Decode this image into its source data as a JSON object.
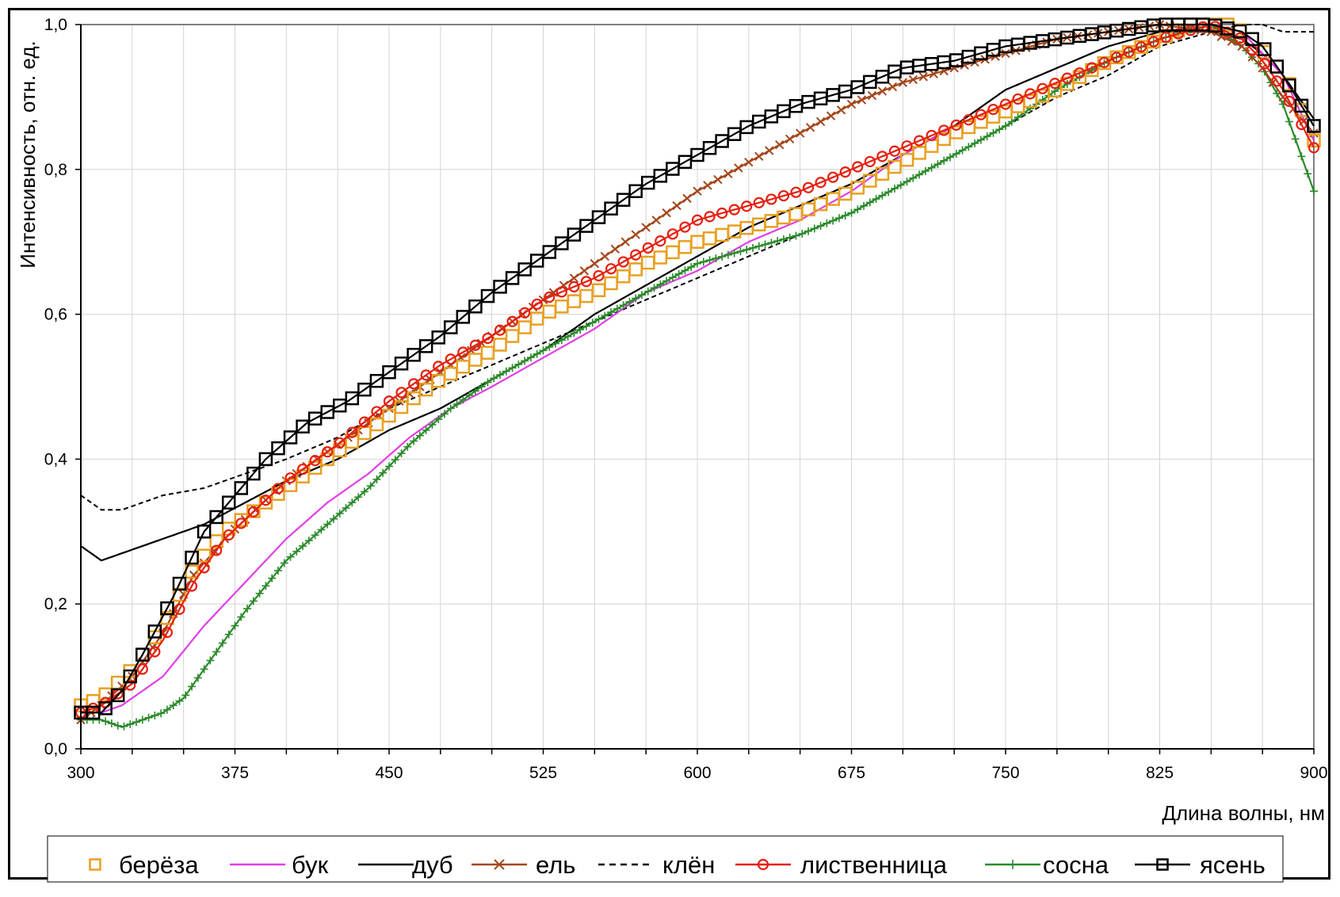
{
  "chart_data": {
    "type": "line",
    "xlabel": "Длина волны, нм",
    "ylabel": "Интенсивность, отн. ед.",
    "xlim": [
      300,
      900
    ],
    "ylim": [
      0,
      1.0
    ],
    "x_ticks": [
      "300",
      "375",
      "450",
      "525",
      "600",
      "675",
      "750",
      "825",
      "900"
    ],
    "y_ticks": [
      "0,0",
      "0,2",
      "0,4",
      "0,6",
      "0,8",
      "1,0"
    ],
    "grid": true,
    "legend_position": "bottom",
    "series": [
      {
        "name": "берёза",
        "color": "#e8a020",
        "marker": "square",
        "line": "none",
        "x": [
          300,
          310,
          325,
          340,
          355,
          370,
          385,
          400,
          425,
          450,
          475,
          500,
          525,
          550,
          575,
          600,
          625,
          650,
          675,
          700,
          725,
          750,
          775,
          800,
          825,
          840,
          850,
          860,
          870,
          880,
          890,
          900
        ],
        "y": [
          0.06,
          0.07,
          0.11,
          0.17,
          0.25,
          0.3,
          0.33,
          0.36,
          0.41,
          0.46,
          0.51,
          0.55,
          0.6,
          0.63,
          0.67,
          0.7,
          0.72,
          0.74,
          0.77,
          0.81,
          0.85,
          0.88,
          0.91,
          0.95,
          0.98,
          1.0,
          1.0,
          1.0,
          0.98,
          0.95,
          0.91,
          0.84
        ]
      },
      {
        "name": "бук",
        "color": "#e23ee6",
        "marker": "none",
        "line": "solid",
        "x": [
          300,
          310,
          320,
          330,
          340,
          360,
          380,
          400,
          420,
          440,
          460,
          480,
          500,
          525,
          550,
          575,
          600,
          625,
          650,
          675,
          700,
          725,
          750,
          775,
          800,
          825,
          850,
          865,
          875,
          885,
          900
        ],
        "y": [
          0.05,
          0.05,
          0.06,
          0.08,
          0.1,
          0.17,
          0.23,
          0.29,
          0.34,
          0.38,
          0.43,
          0.47,
          0.5,
          0.54,
          0.58,
          0.63,
          0.66,
          0.7,
          0.73,
          0.77,
          0.82,
          0.86,
          0.89,
          0.92,
          0.95,
          0.98,
          1.0,
          0.99,
          0.96,
          0.93,
          0.84
        ]
      },
      {
        "name": "дуб",
        "color": "#000000",
        "marker": "none",
        "line": "solid",
        "x": [
          300,
          310,
          320,
          340,
          360,
          380,
          400,
          425,
          450,
          475,
          500,
          525,
          550,
          575,
          600,
          625,
          650,
          675,
          700,
          725,
          750,
          775,
          800,
          825,
          850,
          865,
          875,
          885,
          900
        ],
        "y": [
          0.28,
          0.26,
          0.27,
          0.29,
          0.31,
          0.34,
          0.37,
          0.4,
          0.44,
          0.47,
          0.51,
          0.55,
          0.6,
          0.64,
          0.68,
          0.72,
          0.75,
          0.78,
          0.82,
          0.86,
          0.91,
          0.94,
          0.97,
          0.99,
          0.99,
          0.98,
          0.96,
          0.93,
          0.87
        ]
      },
      {
        "name": "ель",
        "color": "#a3471c",
        "marker": "x",
        "line": "solid",
        "x": [
          300,
          310,
          325,
          340,
          355,
          370,
          385,
          400,
          425,
          450,
          475,
          500,
          525,
          550,
          575,
          600,
          625,
          650,
          675,
          700,
          725,
          750,
          775,
          800,
          825,
          850,
          865,
          875,
          885,
          900
        ],
        "y": [
          0.04,
          0.06,
          0.1,
          0.16,
          0.24,
          0.29,
          0.33,
          0.37,
          0.42,
          0.47,
          0.52,
          0.57,
          0.62,
          0.67,
          0.72,
          0.77,
          0.81,
          0.85,
          0.89,
          0.92,
          0.94,
          0.96,
          0.98,
          0.99,
          1.0,
          0.99,
          0.97,
          0.94,
          0.9,
          0.85
        ]
      },
      {
        "name": "клён",
        "color": "#000000",
        "marker": "none",
        "line": "dashed",
        "x": [
          300,
          310,
          320,
          340,
          360,
          380,
          400,
          425,
          450,
          475,
          500,
          525,
          550,
          575,
          600,
          625,
          650,
          675,
          700,
          725,
          750,
          775,
          800,
          825,
          850,
          865,
          875,
          885,
          900
        ],
        "y": [
          0.35,
          0.33,
          0.33,
          0.35,
          0.36,
          0.38,
          0.4,
          0.43,
          0.47,
          0.5,
          0.53,
          0.56,
          0.59,
          0.62,
          0.65,
          0.68,
          0.71,
          0.74,
          0.78,
          0.82,
          0.86,
          0.9,
          0.93,
          0.97,
          0.99,
          1.0,
          1.0,
          0.99,
          0.99
        ]
      },
      {
        "name": "лиственница",
        "color": "#e52010",
        "marker": "circle",
        "line": "solid",
        "x": [
          300,
          310,
          325,
          340,
          355,
          370,
          385,
          400,
          425,
          450,
          475,
          500,
          525,
          550,
          575,
          600,
          625,
          650,
          675,
          700,
          725,
          750,
          775,
          800,
          825,
          850,
          865,
          875,
          885,
          900
        ],
        "y": [
          0.05,
          0.06,
          0.09,
          0.15,
          0.23,
          0.29,
          0.33,
          0.37,
          0.42,
          0.48,
          0.53,
          0.57,
          0.62,
          0.65,
          0.69,
          0.73,
          0.75,
          0.77,
          0.8,
          0.83,
          0.86,
          0.89,
          0.92,
          0.95,
          0.98,
          1.0,
          0.98,
          0.95,
          0.91,
          0.83
        ]
      },
      {
        "name": "сосна",
        "color": "#2a8a2a",
        "marker": "plus",
        "line": "solid",
        "x": [
          300,
          310,
          320,
          330,
          340,
          350,
          360,
          380,
          400,
          420,
          440,
          460,
          480,
          500,
          525,
          550,
          575,
          600,
          625,
          650,
          675,
          700,
          725,
          750,
          775,
          800,
          825,
          850,
          865,
          875,
          885,
          900
        ],
        "y": [
          0.04,
          0.04,
          0.03,
          0.04,
          0.05,
          0.07,
          0.11,
          0.19,
          0.26,
          0.31,
          0.36,
          0.42,
          0.47,
          0.51,
          0.55,
          0.59,
          0.63,
          0.67,
          0.69,
          0.71,
          0.74,
          0.78,
          0.82,
          0.86,
          0.91,
          0.95,
          0.98,
          1.0,
          0.97,
          0.94,
          0.89,
          0.77
        ]
      },
      {
        "name": "ясень",
        "color": "#000000",
        "marker": "square",
        "line": "solid",
        "x": [
          300,
          310,
          320,
          330,
          345,
          360,
          375,
          390,
          410,
          430,
          450,
          475,
          500,
          525,
          550,
          575,
          600,
          625,
          650,
          675,
          700,
          725,
          750,
          775,
          800,
          825,
          850,
          865,
          875,
          885,
          900
        ],
        "y": [
          0.05,
          0.05,
          0.08,
          0.13,
          0.21,
          0.3,
          0.35,
          0.4,
          0.45,
          0.48,
          0.52,
          0.57,
          0.63,
          0.68,
          0.73,
          0.78,
          0.82,
          0.86,
          0.89,
          0.91,
          0.94,
          0.95,
          0.97,
          0.98,
          0.99,
          1.0,
          1.0,
          0.99,
          0.97,
          0.93,
          0.86
        ]
      }
    ]
  }
}
